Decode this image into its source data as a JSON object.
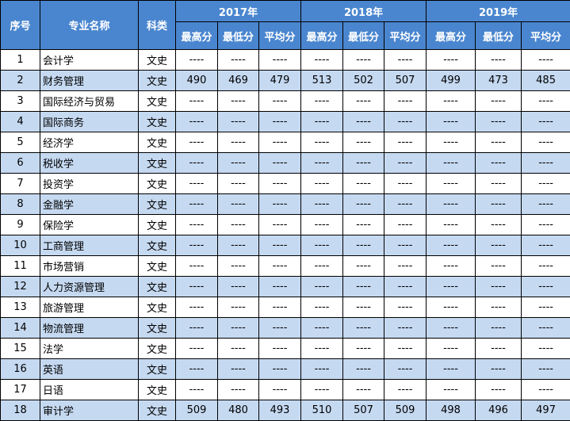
{
  "header": {
    "seq": "序号",
    "major": "专业名称",
    "category": "科类",
    "years": [
      "2017年",
      "2018年",
      "2019年"
    ],
    "score_labels": [
      "最高分",
      "最低分",
      "平均分"
    ]
  },
  "rows": [
    {
      "seq": "1",
      "name": "会计学",
      "cat": "文史",
      "scores": [
        "----",
        "----",
        "----",
        "----",
        "----",
        "----",
        "----",
        "----",
        "----"
      ]
    },
    {
      "seq": "2",
      "name": "财务管理",
      "cat": "文史",
      "scores": [
        "490",
        "469",
        "479",
        "513",
        "502",
        "507",
        "499",
        "473",
        "485"
      ]
    },
    {
      "seq": "3",
      "name": "国际经济与贸易",
      "cat": "文史",
      "scores": [
        "----",
        "----",
        "----",
        "----",
        "----",
        "----",
        "----",
        "----",
        "----"
      ]
    },
    {
      "seq": "4",
      "name": "国际商务",
      "cat": "文史",
      "scores": [
        "----",
        "----",
        "----",
        "----",
        "----",
        "----",
        "----",
        "----",
        "----"
      ]
    },
    {
      "seq": "5",
      "name": "经济学",
      "cat": "文史",
      "scores": [
        "----",
        "----",
        "----",
        "----",
        "----",
        "----",
        "----",
        "----",
        "----"
      ]
    },
    {
      "seq": "6",
      "name": "税收学",
      "cat": "文史",
      "scores": [
        "----",
        "----",
        "----",
        "----",
        "----",
        "----",
        "----",
        "----",
        "----"
      ]
    },
    {
      "seq": "7",
      "name": "投资学",
      "cat": "文史",
      "scores": [
        "----",
        "----",
        "----",
        "----",
        "----",
        "----",
        "----",
        "----",
        "----"
      ]
    },
    {
      "seq": "8",
      "name": "金融学",
      "cat": "文史",
      "scores": [
        "----",
        "----",
        "----",
        "----",
        "----",
        "----",
        "----",
        "----",
        "----"
      ]
    },
    {
      "seq": "9",
      "name": "保险学",
      "cat": "文史",
      "scores": [
        "----",
        "----",
        "----",
        "----",
        "----",
        "----",
        "----",
        "----",
        "----"
      ]
    },
    {
      "seq": "10",
      "name": "工商管理",
      "cat": "文史",
      "scores": [
        "----",
        "----",
        "----",
        "----",
        "----",
        "----",
        "----",
        "----",
        "----"
      ]
    },
    {
      "seq": "11",
      "name": "市场营销",
      "cat": "文史",
      "scores": [
        "----",
        "----",
        "----",
        "----",
        "----",
        "----",
        "----",
        "----",
        "----"
      ]
    },
    {
      "seq": "12",
      "name": "人力资源管理",
      "cat": "文史",
      "scores": [
        "----",
        "----",
        "----",
        "----",
        "----",
        "----",
        "----",
        "----",
        "----"
      ]
    },
    {
      "seq": "13",
      "name": "旅游管理",
      "cat": "文史",
      "scores": [
        "----",
        "----",
        "----",
        "----",
        "----",
        "----",
        "----",
        "----",
        "----"
      ]
    },
    {
      "seq": "14",
      "name": "物流管理",
      "cat": "文史",
      "scores": [
        "----",
        "----",
        "----",
        "----",
        "----",
        "----",
        "----",
        "----",
        "----"
      ]
    },
    {
      "seq": "15",
      "name": "法学",
      "cat": "文史",
      "scores": [
        "----",
        "----",
        "----",
        "----",
        "----",
        "----",
        "----",
        "----",
        "----"
      ]
    },
    {
      "seq": "16",
      "name": "英语",
      "cat": "文史",
      "scores": [
        "----",
        "----",
        "----",
        "----",
        "----",
        "----",
        "----",
        "----",
        "----"
      ]
    },
    {
      "seq": "17",
      "name": "日语",
      "cat": "文史",
      "scores": [
        "----",
        "----",
        "----",
        "----",
        "----",
        "----",
        "----",
        "----",
        "----"
      ]
    },
    {
      "seq": "18",
      "name": "审计学",
      "cat": "文史",
      "scores": [
        "509",
        "480",
        "493",
        "510",
        "507",
        "509",
        "498",
        "496",
        "497"
      ]
    }
  ],
  "colors": {
    "header_bg": "#4a86cf",
    "header_text": "#ffffff",
    "alt_row_bg": "#c5d9f1",
    "border": "#000000"
  }
}
